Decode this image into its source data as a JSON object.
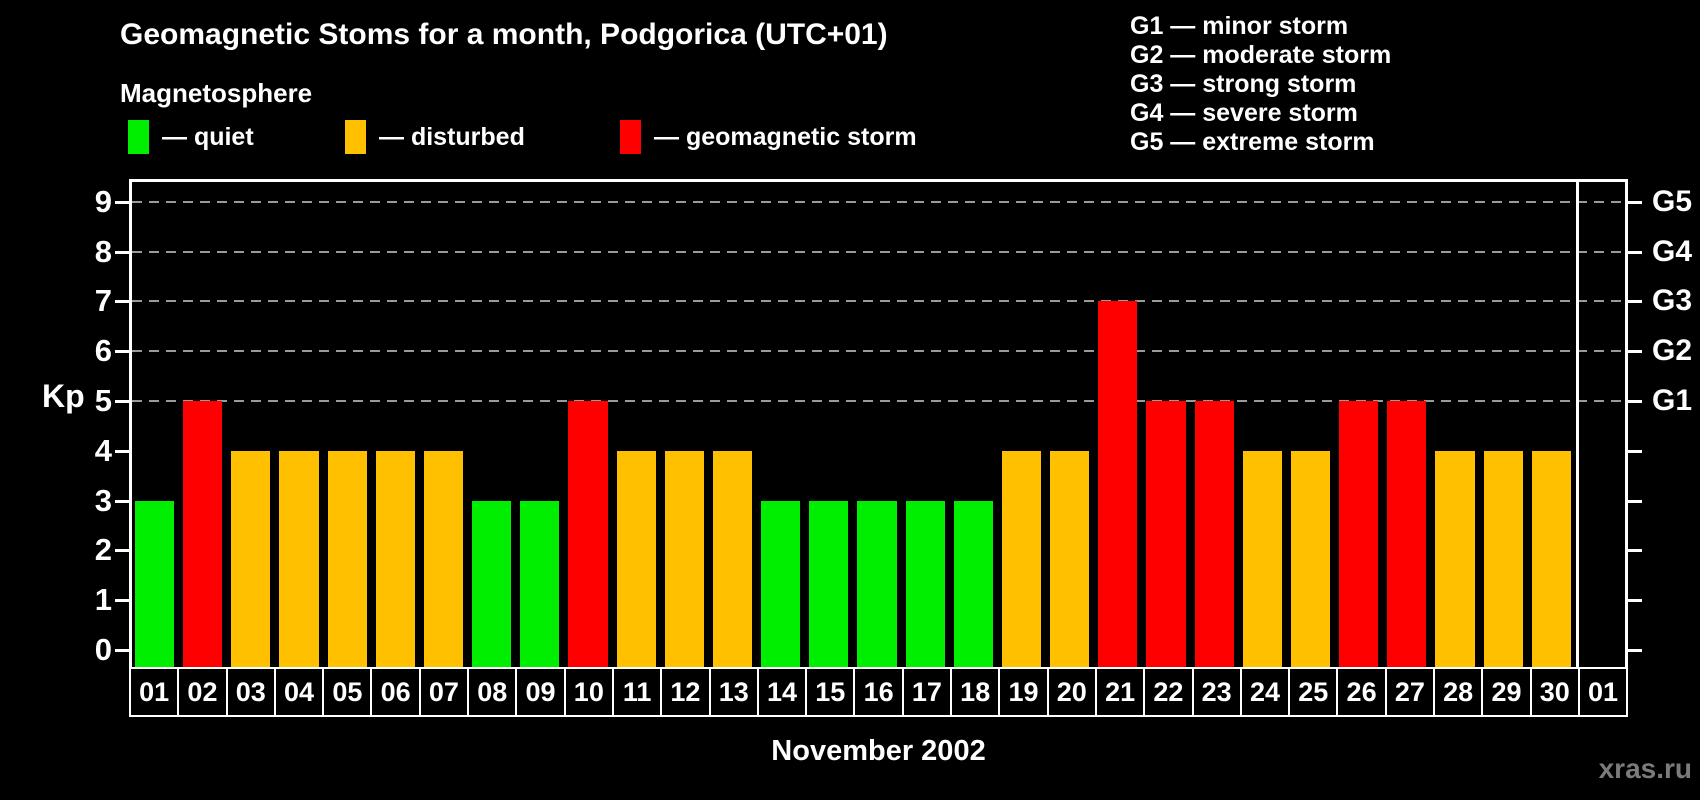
{
  "title": "Geomagnetic Stoms for a month, Podgorica (UTC+01)",
  "subtitle": "Magnetosphere",
  "legend": {
    "quiet": "— quiet",
    "disturbed": "— disturbed",
    "storm": "— geomagnetic storm"
  },
  "storm_scale": [
    "G1 — minor storm",
    "G2 — moderate storm",
    "G3 — strong storm",
    "G4 — severe storm",
    "G5 — extreme storm"
  ],
  "watermark": "xras.ru",
  "chart_data": {
    "type": "bar",
    "title": "Geomagnetic Stoms for a month, Podgorica (UTC+01)",
    "xlabel": "November 2002",
    "ylabel": "Kp",
    "ylim": [
      0,
      9
    ],
    "grid": "dashed horizontal lines at Kp 5 through 9",
    "legend_position": "top",
    "left_ticks": [
      0,
      1,
      2,
      3,
      4,
      5,
      6,
      7,
      8,
      9
    ],
    "grid_levels": [
      5,
      6,
      7,
      8,
      9
    ],
    "g_levels": [
      {
        "kp": 5,
        "label": "G1"
      },
      {
        "kp": 6,
        "label": "G2"
      },
      {
        "kp": 7,
        "label": "G3"
      },
      {
        "kp": 8,
        "label": "G4"
      },
      {
        "kp": 9,
        "label": "G5"
      }
    ],
    "status_colors": {
      "quiet": "#00ee00",
      "disturbed": "#ffc000",
      "storm": "#ff0000"
    },
    "days": [
      {
        "label": "01",
        "kp": 3,
        "status": "quiet"
      },
      {
        "label": "02",
        "kp": 5,
        "status": "storm"
      },
      {
        "label": "03",
        "kp": 4,
        "status": "disturbed"
      },
      {
        "label": "04",
        "kp": 4,
        "status": "disturbed"
      },
      {
        "label": "05",
        "kp": 4,
        "status": "disturbed"
      },
      {
        "label": "06",
        "kp": 4,
        "status": "disturbed"
      },
      {
        "label": "07",
        "kp": 4,
        "status": "disturbed"
      },
      {
        "label": "08",
        "kp": 3,
        "status": "quiet"
      },
      {
        "label": "09",
        "kp": 3,
        "status": "quiet"
      },
      {
        "label": "10",
        "kp": 5,
        "status": "storm"
      },
      {
        "label": "11",
        "kp": 4,
        "status": "disturbed"
      },
      {
        "label": "12",
        "kp": 4,
        "status": "disturbed"
      },
      {
        "label": "13",
        "kp": 4,
        "status": "disturbed"
      },
      {
        "label": "14",
        "kp": 3,
        "status": "quiet"
      },
      {
        "label": "15",
        "kp": 3,
        "status": "quiet"
      },
      {
        "label": "16",
        "kp": 3,
        "status": "quiet"
      },
      {
        "label": "17",
        "kp": 3,
        "status": "quiet"
      },
      {
        "label": "18",
        "kp": 3,
        "status": "quiet"
      },
      {
        "label": "19",
        "kp": 4,
        "status": "disturbed"
      },
      {
        "label": "20",
        "kp": 4,
        "status": "disturbed"
      },
      {
        "label": "21",
        "kp": 7,
        "status": "storm"
      },
      {
        "label": "22",
        "kp": 5,
        "status": "storm"
      },
      {
        "label": "23",
        "kp": 5,
        "status": "storm"
      },
      {
        "label": "24",
        "kp": 4,
        "status": "disturbed"
      },
      {
        "label": "25",
        "kp": 4,
        "status": "disturbed"
      },
      {
        "label": "26",
        "kp": 5,
        "status": "storm"
      },
      {
        "label": "27",
        "kp": 5,
        "status": "storm"
      },
      {
        "label": "28",
        "kp": 4,
        "status": "disturbed"
      },
      {
        "label": "29",
        "kp": 4,
        "status": "disturbed"
      },
      {
        "label": "30",
        "kp": 4,
        "status": "disturbed"
      },
      {
        "label": "01",
        "kp": null,
        "status": "none"
      }
    ]
  }
}
